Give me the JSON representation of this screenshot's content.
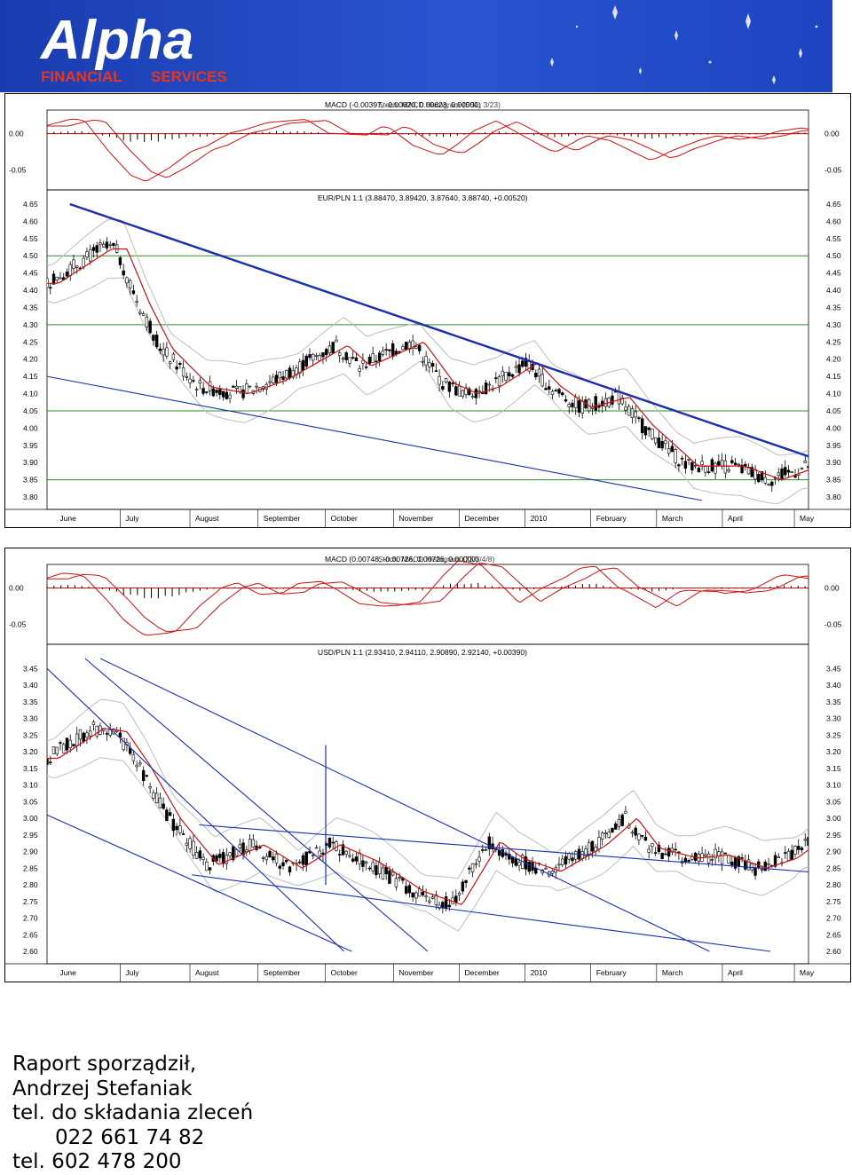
{
  "brand": {
    "name": "Alpha",
    "tagline_left": "FINANCIAL",
    "tagline_right": "SERVICES",
    "colors": {
      "background": "#1c3fb8",
      "text": "#ffffff",
      "tagline": "#e8361c"
    }
  },
  "colors": {
    "candle": "#000000",
    "moving_average": "#d01010",
    "bands": "#bdbdbd",
    "trendline": "#1a2fb0",
    "level": "#2e8b2e",
    "zero_line": "#c00000"
  },
  "x_axis_months": [
    "June",
    "July",
    "August",
    "September",
    "October",
    "November",
    "December",
    "2010",
    "February",
    "March",
    "April",
    "May"
  ],
  "chart_data": [
    {
      "type": "candlestick",
      "id": "eurpln",
      "indicator_label": "MACD (-0.00397, -0.00620, 0.00623, 0.00000)",
      "indicator_overlay_label": "Stoch. MACD Histogram (SSL, 3/23)",
      "indicator_axis": {
        "ticks": [
          "0.00",
          "-0.05"
        ],
        "ylim": [
          -0.075,
          0.03
        ]
      },
      "price_label": "EUR/PLN 1:1 (3.88470, 3.89420, 3.87640, 3.88740, +0.00520)",
      "y_ticks": [
        "4.65",
        "4.60",
        "4.55",
        "4.50",
        "4.45",
        "4.40",
        "4.35",
        "4.30",
        "4.25",
        "4.20",
        "4.15",
        "4.10",
        "4.05",
        "4.00",
        "3.95",
        "3.90",
        "3.85",
        "3.80"
      ],
      "ylim": [
        3.8,
        4.65
      ],
      "x_months": [
        "June",
        "July",
        "August",
        "September",
        "October",
        "November",
        "December",
        "2010",
        "February",
        "March",
        "April",
        "May"
      ],
      "path": [
        [
          0,
          4.42
        ],
        [
          0.07,
          4.52
        ],
        [
          0.09,
          4.52
        ],
        [
          0.12,
          4.36
        ],
        [
          0.15,
          4.23
        ],
        [
          0.2,
          4.12
        ],
        [
          0.25,
          4.1
        ],
        [
          0.3,
          4.14
        ],
        [
          0.38,
          4.24
        ],
        [
          0.41,
          4.18
        ],
        [
          0.48,
          4.25
        ],
        [
          0.52,
          4.13
        ],
        [
          0.55,
          4.1
        ],
        [
          0.58,
          4.12
        ],
        [
          0.63,
          4.19
        ],
        [
          0.66,
          4.12
        ],
        [
          0.7,
          4.06
        ],
        [
          0.75,
          4.09
        ],
        [
          0.78,
          4.01
        ],
        [
          0.84,
          3.89
        ],
        [
          0.9,
          3.89
        ],
        [
          0.95,
          3.85
        ],
        [
          1.0,
          3.89
        ]
      ],
      "levels": [
        4.5,
        4.3,
        4.05,
        3.85
      ],
      "trendlines": [
        {
          "from": [
            0.03,
            4.65
          ],
          "to": [
            1.07,
            3.865
          ]
        },
        {
          "from": [
            0.0,
            4.15
          ],
          "to": [
            0.86,
            3.79
          ]
        }
      ],
      "annotations": []
    },
    {
      "type": "candlestick",
      "id": "usdpln",
      "indicator_label": "MACD (0.00748, -0.00726, 0.00726, 0.00000)",
      "indicator_overlay_label": "Stoch. MACD Histogram (73/3/4/8)",
      "indicator_axis": {
        "ticks": [
          "0.00",
          "-0.05"
        ],
        "ylim": [
          -0.075,
          0.03
        ]
      },
      "price_label": "USD/PLN 1:1 (2.93410, 2.94110, 2.90890, 2.92140, +0.00390)",
      "y_ticks": [
        "3.45",
        "3.40",
        "3.35",
        "3.30",
        "3.25",
        "3.20",
        "3.15",
        "3.10",
        "3.05",
        "3.00",
        "2.95",
        "2.90",
        "2.85",
        "2.80",
        "2.75",
        "2.70",
        "2.65",
        "2.60"
      ],
      "ylim": [
        2.6,
        3.48
      ],
      "x_months": [
        "June",
        "July",
        "August",
        "September",
        "October",
        "November",
        "December",
        "2010",
        "February",
        "March",
        "April",
        "May"
      ],
      "path": [
        [
          0,
          3.18
        ],
        [
          0.06,
          3.27
        ],
        [
          0.09,
          3.26
        ],
        [
          0.12,
          3.16
        ],
        [
          0.16,
          3.0
        ],
        [
          0.21,
          2.86
        ],
        [
          0.27,
          2.92
        ],
        [
          0.32,
          2.85
        ],
        [
          0.37,
          2.92
        ],
        [
          0.42,
          2.87
        ],
        [
          0.48,
          2.78
        ],
        [
          0.53,
          2.74
        ],
        [
          0.58,
          2.93
        ],
        [
          0.61,
          2.88
        ],
        [
          0.66,
          2.84
        ],
        [
          0.72,
          2.92
        ],
        [
          0.76,
          3.0
        ],
        [
          0.79,
          2.91
        ],
        [
          0.84,
          2.88
        ],
        [
          0.88,
          2.89
        ],
        [
          0.93,
          2.85
        ],
        [
          0.97,
          2.88
        ],
        [
          1.0,
          2.93
        ]
      ],
      "levels": [],
      "trendlines": [
        {
          "from": [
            0.0,
            3.45
          ],
          "to": [
            0.39,
            2.6
          ]
        },
        {
          "from": [
            0.05,
            3.48
          ],
          "to": [
            0.5,
            2.6
          ]
        },
        {
          "from": [
            0.07,
            3.48
          ],
          "to": [
            0.87,
            2.6
          ]
        },
        {
          "from": [
            0.0,
            3.01
          ],
          "to": [
            0.4,
            2.6
          ]
        },
        {
          "from": [
            0.2,
            2.98
          ],
          "to": [
            1.05,
            2.83
          ]
        },
        {
          "from": [
            0.19,
            2.83
          ],
          "to": [
            0.95,
            2.6
          ]
        }
      ],
      "annotations": [
        {
          "x": 0.366,
          "y_from": 2.8,
          "y_to": 3.22
        }
      ]
    }
  ],
  "footer": {
    "line1": "Raport sporządził,",
    "line2": "Andrzej Stefaniak",
    "line3": "tel. do składania zleceń",
    "line4": "022 661 74 82",
    "line5": "tel. 602 478 200"
  }
}
